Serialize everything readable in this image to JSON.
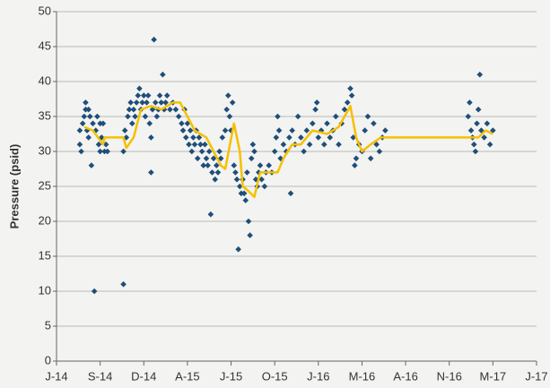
{
  "chart_data": {
    "type": "scatter",
    "y_label": "Pressure (psid)",
    "xlim": [
      0,
      36
    ],
    "ylim": [
      0,
      50
    ],
    "xticks": [
      {
        "value": 0,
        "label": "J-14"
      },
      {
        "value": 3,
        "label": "S-14"
      },
      {
        "value": 6,
        "label": "D-14"
      },
      {
        "value": 9,
        "label": "A-15"
      },
      {
        "value": 12,
        "label": "J-15"
      },
      {
        "value": 15,
        "label": "O-15"
      },
      {
        "value": 18,
        "label": "J-16"
      },
      {
        "value": 21,
        "label": "M-16"
      },
      {
        "value": 24,
        "label": "A-16"
      },
      {
        "value": 27,
        "label": "N-16"
      },
      {
        "value": 30,
        "label": "M-17"
      },
      {
        "value": 33,
        "label": "J-17"
      }
    ],
    "yticks": [
      0,
      5,
      10,
      15,
      20,
      25,
      30,
      35,
      40,
      45,
      50
    ],
    "grid": true,
    "series": [
      {
        "color": "#1f4e79",
        "marker": "diamond",
        "x": [
          1.6,
          1.6,
          1.7,
          1.8,
          1.9,
          2.0,
          2.0,
          2.1,
          2.2,
          2.2,
          2.3,
          2.4,
          2.5,
          2.6,
          2.7,
          2.8,
          2.9,
          3.0,
          3.0,
          3.1,
          3.2,
          3.3,
          3.4,
          3.5,
          4.6,
          4.6,
          4.7,
          4.8,
          4.9,
          5.0,
          5.1,
          5.2,
          5.3,
          5.4,
          5.5,
          5.6,
          5.7,
          5.8,
          5.9,
          6.0,
          6.1,
          6.2,
          6.3,
          6.4,
          6.5,
          6.5,
          6.6,
          6.7,
          6.8,
          6.9,
          7.0,
          7.1,
          7.2,
          7.3,
          7.4,
          7.5,
          7.6,
          7.8,
          8.0,
          8.2,
          8.4,
          8.6,
          8.7,
          8.8,
          8.9,
          9.0,
          9.1,
          9.2,
          9.3,
          9.4,
          9.5,
          9.6,
          9.7,
          9.8,
          9.9,
          10.0,
          10.1,
          10.2,
          10.3,
          10.4,
          10.5,
          10.6,
          10.7,
          10.8,
          10.9,
          11.0,
          11.1,
          11.2,
          11.3,
          11.4,
          11.6,
          11.7,
          11.8,
          11.9,
          12.0,
          12.1,
          12.2,
          12.3,
          12.4,
          12.5,
          12.6,
          12.7,
          12.8,
          12.9,
          13.0,
          13.1,
          13.2,
          13.3,
          13.4,
          13.5,
          13.6,
          13.7,
          13.8,
          13.9,
          14.0,
          14.1,
          14.3,
          14.4,
          14.6,
          14.8,
          15.0,
          15.1,
          15.2,
          15.3,
          15.4,
          15.6,
          15.8,
          16.0,
          16.1,
          16.2,
          16.4,
          16.6,
          16.8,
          17.0,
          17.2,
          17.4,
          17.6,
          17.8,
          17.9,
          18.0,
          18.2,
          18.4,
          18.6,
          18.8,
          19.0,
          19.2,
          19.4,
          19.6,
          19.8,
          20.0,
          20.2,
          20.3,
          20.4,
          20.5,
          20.6,
          20.8,
          21.0,
          21.2,
          21.4,
          21.6,
          21.8,
          22.0,
          22.2,
          22.4,
          22.6,
          28.3,
          28.4,
          28.5,
          28.6,
          28.7,
          28.8,
          28.9,
          29.0,
          29.1,
          29.2,
          29.4,
          29.6,
          29.8,
          30.0
        ],
        "values": [
          31,
          33,
          30,
          34,
          35,
          36,
          37,
          33,
          36,
          32,
          35,
          28,
          34,
          10,
          33,
          35,
          31,
          34,
          30,
          32,
          34,
          30,
          31,
          30,
          11,
          30,
          33,
          32,
          35,
          36,
          37,
          34,
          36,
          35,
          37,
          38,
          39,
          36,
          37,
          38,
          35,
          37,
          38,
          34,
          32,
          27,
          36,
          46,
          37,
          35,
          36,
          38,
          37,
          41,
          36,
          37,
          38,
          36,
          37,
          36,
          35,
          34,
          33,
          36,
          32,
          34,
          31,
          33,
          30,
          32,
          31,
          33,
          29,
          32,
          31,
          30,
          28,
          31,
          29,
          28,
          30,
          21,
          27,
          29,
          26,
          28,
          27,
          30,
          29,
          32,
          33,
          36,
          38,
          35,
          33,
          37,
          28,
          27,
          26,
          16,
          25,
          24,
          26,
          24,
          23,
          27,
          20,
          18,
          29,
          31,
          30,
          26,
          25,
          27,
          28,
          26,
          25,
          27,
          28,
          27,
          30,
          32,
          35,
          33,
          29,
          31,
          30,
          32,
          24,
          33,
          31,
          35,
          32,
          30,
          33,
          31,
          34,
          36,
          37,
          32,
          33,
          31,
          34,
          32,
          33,
          35,
          31,
          34,
          36,
          37,
          39,
          38,
          32,
          28,
          29,
          31,
          30,
          33,
          35,
          29,
          34,
          31,
          30,
          32,
          33,
          35,
          37,
          33,
          32,
          31,
          30,
          34,
          36,
          41,
          33,
          32,
          34,
          31,
          33
        ]
      },
      {
        "color": "#f5c000",
        "marker": "line",
        "x": [
          1.9,
          2.5,
          3.2,
          3.3,
          4.6,
          4.8,
          5.3,
          5.8,
          6.5,
          7.2,
          8.0,
          8.5,
          9.0,
          9.5,
          10.3,
          10.8,
          11.3,
          11.6,
          12.2,
          12.6,
          12.8,
          13.1,
          13.6,
          14.0,
          14.8,
          15.2,
          15.6,
          16.2,
          16.8,
          17.6,
          18.6,
          19.4,
          20.2,
          20.6,
          21.0,
          21.6,
          22.3,
          29.0,
          29.5,
          30.0
        ],
        "values": [
          33.5,
          33,
          31,
          32,
          32,
          30.5,
          32,
          36,
          36.5,
          36,
          37,
          37,
          35,
          33,
          32,
          30,
          28,
          27.5,
          34,
          30,
          25,
          24.5,
          23.5,
          27,
          27,
          27,
          29,
          31,
          31,
          33,
          32.5,
          33.5,
          36.5,
          32,
          30,
          31,
          32,
          32,
          33,
          32.5
        ]
      }
    ]
  }
}
